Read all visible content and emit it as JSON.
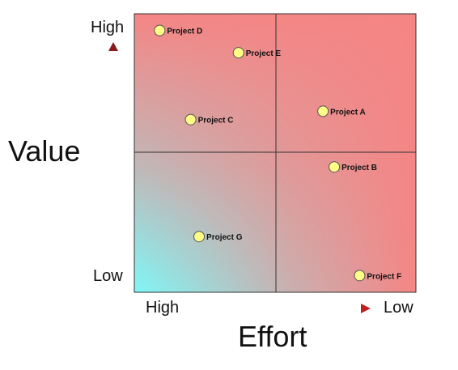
{
  "axes": {
    "y": {
      "title": "Value",
      "top_label": "High",
      "bottom_label": "Low",
      "arrow_color_top": "#8b1a1a",
      "arrow_color_bottom": "#5fd3d3"
    },
    "x": {
      "title": "Effort",
      "left_label": "High",
      "right_label": "Low",
      "arrow_color_left": "#5fd3d3",
      "arrow_color_right": "#c02020"
    }
  },
  "colors": {
    "high_value": "#f58585",
    "low_effort_low_value": "#7ff7f7",
    "mid": "#bdbdbd",
    "marker_fill": "#ffff88",
    "marker_stroke": "#555555"
  },
  "chart_data": {
    "type": "scatter",
    "x_axis": {
      "from": "High",
      "to": "Low",
      "range": [
        0,
        1
      ]
    },
    "y_axis": {
      "from": "Low",
      "to": "High",
      "range": [
        0,
        1
      ]
    },
    "quadrant_split": {
      "x": 0.5,
      "y": 0.5
    },
    "points": [
      {
        "label": "Project D",
        "x": 0.09,
        "y": 0.94
      },
      {
        "label": "Project E",
        "x": 0.37,
        "y": 0.86
      },
      {
        "label": "Project C",
        "x": 0.2,
        "y": 0.62
      },
      {
        "label": "Project A",
        "x": 0.67,
        "y": 0.65
      },
      {
        "label": "Project B",
        "x": 0.71,
        "y": 0.45
      },
      {
        "label": "Project G",
        "x": 0.23,
        "y": 0.2
      },
      {
        "label": "Project F",
        "x": 0.8,
        "y": 0.06
      }
    ]
  }
}
